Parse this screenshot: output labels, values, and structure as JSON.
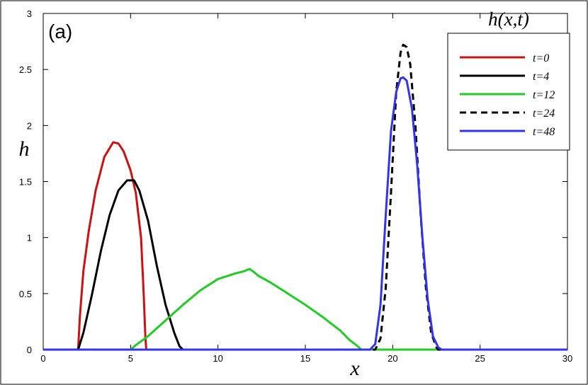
{
  "chart_data": {
    "type": "line",
    "panel_label": "(a)",
    "legend_title": "h(x,t)",
    "legend_position": "top-right",
    "xlabel": "x",
    "ylabel": "h",
    "xlim": [
      0,
      30
    ],
    "ylim": [
      0,
      3
    ],
    "xticks": [
      0,
      5,
      10,
      15,
      20,
      25,
      30
    ],
    "yticks": [
      0,
      0.5,
      1,
      1.5,
      2,
      2.5,
      3
    ],
    "ytick_labels": [
      "0",
      "0.5",
      "1",
      "1.5",
      "2",
      "2.5",
      "3"
    ],
    "grid": false,
    "series": [
      {
        "name": "t=0",
        "color": "#cc1111",
        "dash": "solid",
        "points": [
          [
            0,
            0
          ],
          [
            2,
            0
          ],
          [
            2.1,
            0.3
          ],
          [
            2.3,
            0.7
          ],
          [
            2.6,
            1.05
          ],
          [
            3,
            1.42
          ],
          [
            3.5,
            1.72
          ],
          [
            4,
            1.85
          ],
          [
            4.3,
            1.84
          ],
          [
            4.6,
            1.77
          ],
          [
            5,
            1.6
          ],
          [
            5.3,
            1.4
          ],
          [
            5.6,
            1.0
          ],
          [
            5.75,
            0.5
          ],
          [
            5.85,
            0.1
          ],
          [
            5.9,
            0
          ],
          [
            30,
            0
          ]
        ]
      },
      {
        "name": "t=4",
        "color": "#000000",
        "dash": "solid",
        "points": [
          [
            0,
            0
          ],
          [
            2,
            0
          ],
          [
            2.3,
            0.15
          ],
          [
            2.8,
            0.5
          ],
          [
            3.3,
            0.88
          ],
          [
            3.8,
            1.2
          ],
          [
            4.3,
            1.42
          ],
          [
            4.8,
            1.51
          ],
          [
            5.2,
            1.51
          ],
          [
            5.5,
            1.42
          ],
          [
            6,
            1.15
          ],
          [
            6.5,
            0.75
          ],
          [
            7,
            0.4
          ],
          [
            7.5,
            0.15
          ],
          [
            7.8,
            0.03
          ],
          [
            8,
            0
          ],
          [
            30,
            0
          ]
        ]
      },
      {
        "name": "t=12",
        "color": "#22cc22",
        "dash": "solid",
        "points": [
          [
            0,
            0
          ],
          [
            5,
            0
          ],
          [
            5.3,
            0.04
          ],
          [
            6,
            0.12
          ],
          [
            7,
            0.26
          ],
          [
            8,
            0.4
          ],
          [
            9,
            0.53
          ],
          [
            10,
            0.63
          ],
          [
            11,
            0.68
          ],
          [
            11.5,
            0.7
          ],
          [
            11.8,
            0.72
          ],
          [
            12,
            0.7
          ],
          [
            12.3,
            0.66
          ],
          [
            13,
            0.6
          ],
          [
            14,
            0.5
          ],
          [
            15,
            0.4
          ],
          [
            16,
            0.29
          ],
          [
            17,
            0.17
          ],
          [
            17.5,
            0.09
          ],
          [
            18,
            0.03
          ],
          [
            18.2,
            0
          ],
          [
            30,
            0
          ]
        ]
      },
      {
        "name": "t=24",
        "color": "#000000",
        "dash": "dashed",
        "points": [
          [
            0,
            0
          ],
          [
            19,
            0
          ],
          [
            19.3,
            0.1
          ],
          [
            19.6,
            0.55
          ],
          [
            19.9,
            1.4
          ],
          [
            20.2,
            2.3
          ],
          [
            20.45,
            2.65
          ],
          [
            20.6,
            2.72
          ],
          [
            20.8,
            2.7
          ],
          [
            21,
            2.55
          ],
          [
            21.3,
            2.0
          ],
          [
            21.6,
            1.2
          ],
          [
            21.9,
            0.55
          ],
          [
            22.2,
            0.15
          ],
          [
            22.5,
            0.02
          ],
          [
            22.6,
            0
          ],
          [
            30,
            0
          ]
        ]
      },
      {
        "name": "t=48",
        "color": "#3333ee",
        "dash": "solid",
        "points": [
          [
            0,
            0
          ],
          [
            18.7,
            0
          ],
          [
            19,
            0.05
          ],
          [
            19.3,
            0.4
          ],
          [
            19.6,
            1.2
          ],
          [
            19.9,
            1.95
          ],
          [
            20.2,
            2.3
          ],
          [
            20.45,
            2.42
          ],
          [
            20.6,
            2.43
          ],
          [
            20.8,
            2.4
          ],
          [
            21.1,
            2.15
          ],
          [
            21.4,
            1.65
          ],
          [
            21.7,
            1.0
          ],
          [
            22,
            0.45
          ],
          [
            22.3,
            0.12
          ],
          [
            22.6,
            0.02
          ],
          [
            22.8,
            0
          ],
          [
            30,
            0
          ]
        ]
      }
    ]
  }
}
